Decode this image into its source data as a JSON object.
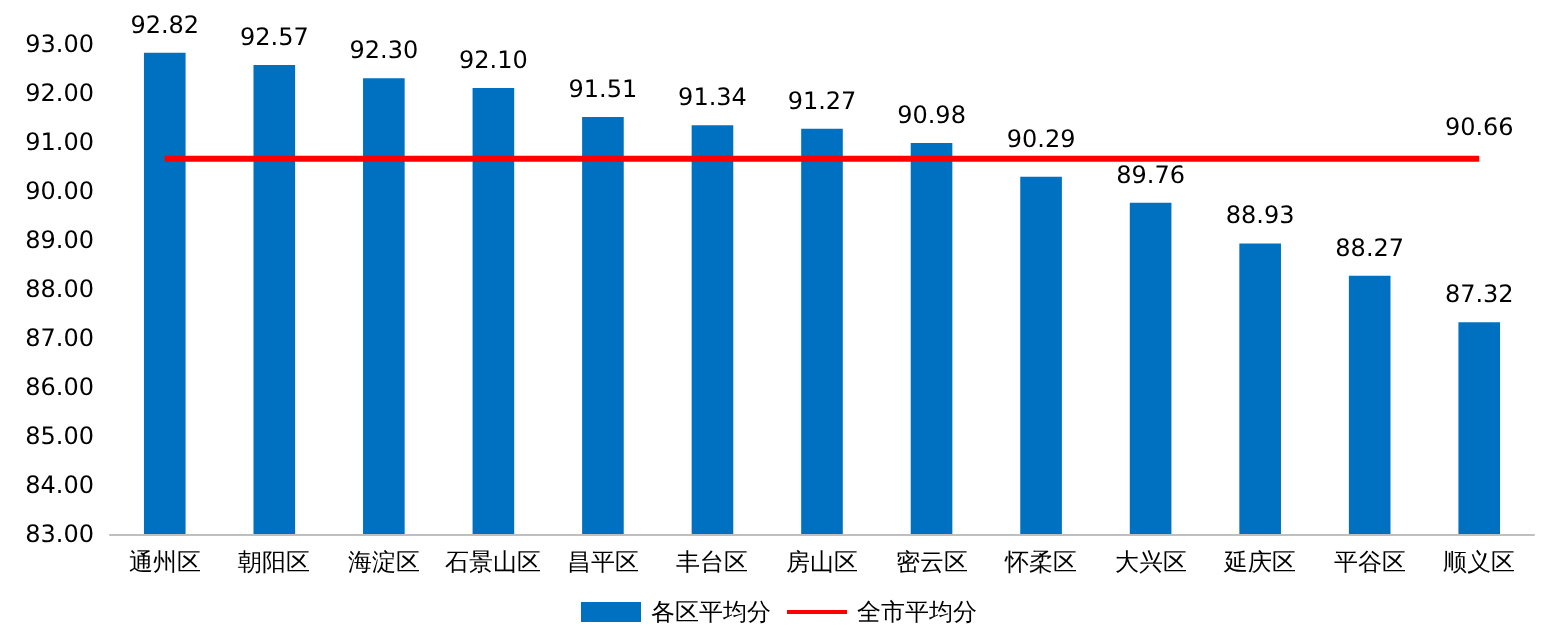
{
  "chart_data": {
    "type": "bar",
    "categories": [
      "通州区",
      "朝阳区",
      "海淀区",
      "石景山区",
      "昌平区",
      "丰台区",
      "房山区",
      "密云区",
      "怀柔区",
      "大兴区",
      "延庆区",
      "平谷区",
      "顺义区"
    ],
    "series": [
      {
        "name": "各区平均分",
        "color": "#0070c0",
        "values": [
          92.82,
          92.57,
          92.3,
          92.1,
          91.51,
          91.34,
          91.27,
          90.98,
          90.29,
          89.76,
          88.93,
          88.27,
          87.32
        ],
        "value_labels": [
          "92.82",
          "92.57",
          "92.30",
          "92.10",
          "91.51",
          "91.34",
          "91.27",
          "90.98",
          "90.29",
          "89.76",
          "88.93",
          "88.27",
          "87.32"
        ]
      },
      {
        "name": "全市平均分",
        "type": "line",
        "color": "#ff0000",
        "marker": "none",
        "values": [
          90.66,
          90.66,
          90.66,
          90.66,
          90.66,
          90.66,
          90.66,
          90.66,
          90.66,
          90.66,
          90.66,
          90.66,
          90.66
        ],
        "value_labels": [
          null,
          null,
          null,
          null,
          null,
          null,
          null,
          null,
          null,
          null,
          null,
          null,
          "90.66"
        ]
      }
    ],
    "ylim": [
      83,
      93
    ],
    "yticks": [
      {
        "value": 83,
        "label": "83.00"
      },
      {
        "value": 84,
        "label": "84.00"
      },
      {
        "value": 85,
        "label": "85.00"
      },
      {
        "value": 86,
        "label": "86.00"
      },
      {
        "value": 87,
        "label": "87.00"
      },
      {
        "value": 88,
        "label": "88.00"
      },
      {
        "value": 89,
        "label": "89.00"
      },
      {
        "value": 90,
        "label": "90.00"
      },
      {
        "value": 91,
        "label": "91.00"
      },
      {
        "value": 92,
        "label": "92.00"
      },
      {
        "value": 93,
        "label": "93.00"
      }
    ],
    "grid": false,
    "legend": "bottom"
  }
}
